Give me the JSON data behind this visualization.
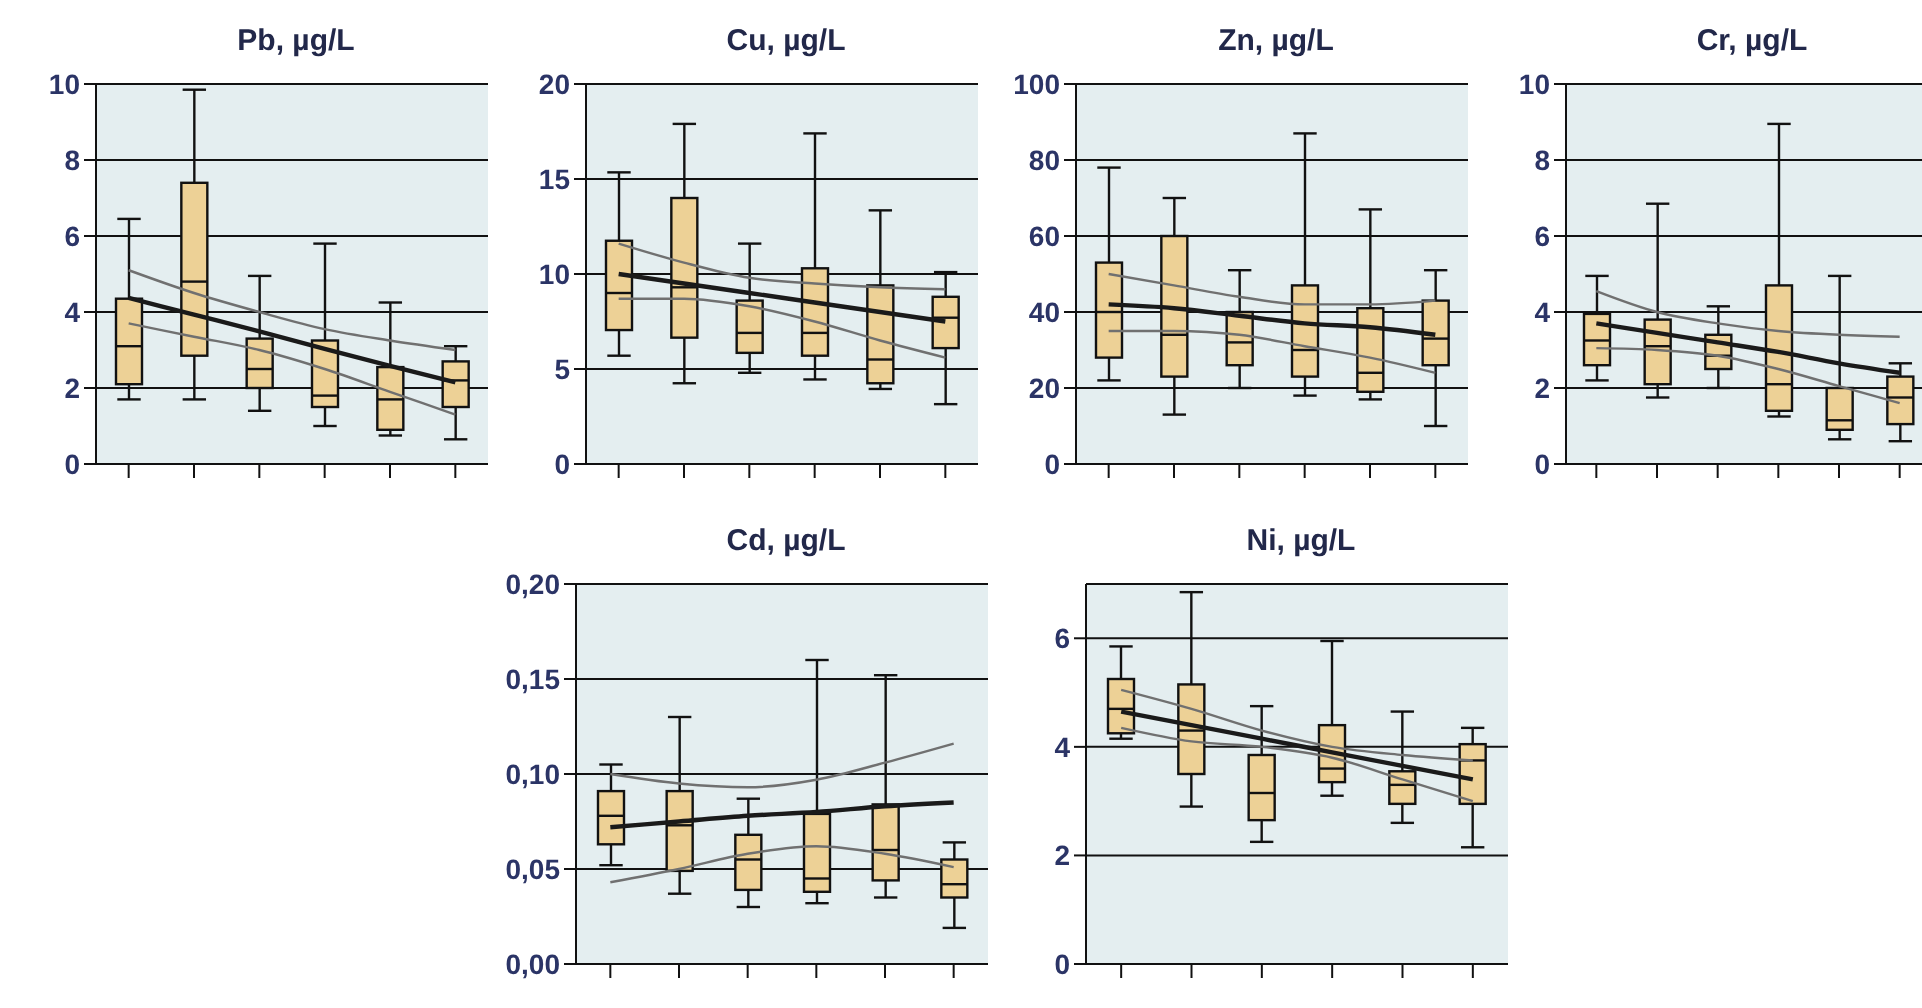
{
  "chart_data": [
    {
      "type": "box",
      "title": "Pb, µg/L",
      "categories": [
        null,
        null,
        null,
        null,
        null,
        null
      ],
      "ylim": [
        0,
        10
      ],
      "yticks": [
        0,
        2,
        4,
        6,
        8,
        10
      ],
      "grid": "y",
      "color": "#edd196",
      "boxes": [
        {
          "low": 1.7,
          "q1": 2.1,
          "median": 3.1,
          "q3": 4.35,
          "high": 6.45
        },
        {
          "low": 1.7,
          "q1": 2.85,
          "median": 4.8,
          "q3": 7.4,
          "high": 9.85
        },
        {
          "low": 1.4,
          "q1": 2.0,
          "median": 2.5,
          "q3": 3.3,
          "high": 4.95
        },
        {
          "low": 1.0,
          "q1": 1.5,
          "median": 1.8,
          "q3": 3.25,
          "high": 5.8
        },
        {
          "low": 0.75,
          "q1": 0.9,
          "median": 1.7,
          "q3": 2.55,
          "high": 4.25
        },
        {
          "low": 0.65,
          "q1": 1.5,
          "median": 2.2,
          "q3": 2.7,
          "high": 3.1
        }
      ],
      "series": [
        {
          "type": "line",
          "color": "#1a1a1a",
          "values": [
            4.37,
            3.93,
            3.49,
            3.03,
            2.58,
            2.15
          ]
        },
        {
          "type": "line",
          "color": "#707070",
          "values": [
            5.1,
            4.5,
            4.0,
            3.55,
            3.25,
            3.0
          ]
        },
        {
          "type": "line",
          "color": "#707070",
          "values": [
            3.7,
            3.35,
            3.0,
            2.5,
            1.9,
            1.3
          ]
        }
      ]
    },
    {
      "type": "box",
      "title": "Cu, µg/L",
      "categories": [
        null,
        null,
        null,
        null,
        null,
        null
      ],
      "ylim": [
        0,
        20
      ],
      "yticks": [
        0,
        5,
        10,
        15,
        20
      ],
      "grid": "y",
      "color": "#edd196",
      "boxes": [
        {
          "low": 5.7,
          "q1": 7.05,
          "median": 9.0,
          "q3": 11.75,
          "high": 15.35
        },
        {
          "low": 4.25,
          "q1": 6.65,
          "median": 9.3,
          "q3": 14.0,
          "high": 17.9
        },
        {
          "low": 4.8,
          "q1": 5.85,
          "median": 6.9,
          "q3": 8.6,
          "high": 11.6
        },
        {
          "low": 4.45,
          "q1": 5.7,
          "median": 6.9,
          "q3": 10.3,
          "high": 17.4
        },
        {
          "low": 3.95,
          "q1": 4.25,
          "median": 5.5,
          "q3": 9.4,
          "high": 13.35
        },
        {
          "low": 3.15,
          "q1": 6.1,
          "median": 7.7,
          "q3": 8.8,
          "high": 10.1
        }
      ],
      "series": [
        {
          "type": "line",
          "color": "#1a1a1a",
          "values": [
            10.0,
            9.5,
            9.0,
            8.5,
            8.0,
            7.5
          ]
        },
        {
          "type": "line",
          "color": "#707070",
          "values": [
            11.6,
            10.6,
            9.8,
            9.5,
            9.3,
            9.2
          ]
        },
        {
          "type": "line",
          "color": "#707070",
          "values": [
            8.7,
            8.7,
            8.3,
            7.5,
            6.5,
            5.6
          ]
        }
      ]
    },
    {
      "type": "box",
      "title": "Zn, µg/L",
      "categories": [
        null,
        null,
        null,
        null,
        null,
        null
      ],
      "ylim": [
        0,
        100
      ],
      "yticks": [
        0,
        20,
        40,
        60,
        80,
        100
      ],
      "grid": "y",
      "color": "#edd196",
      "boxes": [
        {
          "low": 22,
          "q1": 28,
          "median": 40,
          "q3": 53,
          "high": 78
        },
        {
          "low": 13,
          "q1": 23,
          "median": 34,
          "q3": 60,
          "high": 70
        },
        {
          "low": 20,
          "q1": 26,
          "median": 32,
          "q3": 40,
          "high": 51
        },
        {
          "low": 18,
          "q1": 23,
          "median": 30,
          "q3": 47,
          "high": 87
        },
        {
          "low": 17,
          "q1": 19,
          "median": 24,
          "q3": 41,
          "high": 67
        },
        {
          "low": 10,
          "q1": 26,
          "median": 33,
          "q3": 43,
          "high": 51
        }
      ],
      "series": [
        {
          "type": "line",
          "color": "#1a1a1a",
          "values": [
            42,
            41,
            39,
            37,
            36,
            34
          ]
        },
        {
          "type": "line",
          "color": "#707070",
          "values": [
            50,
            47,
            44,
            42,
            42,
            43
          ]
        },
        {
          "type": "line",
          "color": "#707070",
          "values": [
            35,
            35,
            34,
            31,
            28,
            24
          ]
        }
      ]
    },
    {
      "type": "box",
      "title": "Cr, µg/L",
      "categories": [
        null,
        null,
        null,
        null,
        null,
        null
      ],
      "ylim": [
        0,
        10
      ],
      "yticks": [
        0,
        2,
        4,
        6,
        8,
        10
      ],
      "grid": "y",
      "color": "#edd196",
      "boxes": [
        {
          "low": 2.2,
          "q1": 2.6,
          "median": 3.25,
          "q3": 3.95,
          "high": 4.95
        },
        {
          "low": 1.75,
          "q1": 2.1,
          "median": 3.1,
          "q3": 3.8,
          "high": 6.85
        },
        {
          "low": 2.0,
          "q1": 2.5,
          "median": 2.85,
          "q3": 3.4,
          "high": 4.15
        },
        {
          "low": 1.25,
          "q1": 1.4,
          "median": 2.1,
          "q3": 4.7,
          "high": 8.95
        },
        {
          "low": 0.65,
          "q1": 0.9,
          "median": 1.15,
          "q3": 2.0,
          "high": 4.95
        },
        {
          "low": 0.6,
          "q1": 1.05,
          "median": 1.75,
          "q3": 2.3,
          "high": 2.65
        }
      ],
      "series": [
        {
          "type": "line",
          "color": "#1a1a1a",
          "values": [
            3.7,
            3.45,
            3.2,
            2.95,
            2.65,
            2.4
          ]
        },
        {
          "type": "line",
          "color": "#707070",
          "values": [
            4.55,
            4.0,
            3.7,
            3.5,
            3.4,
            3.35
          ]
        },
        {
          "type": "line",
          "color": "#707070",
          "values": [
            3.05,
            3.0,
            2.85,
            2.5,
            2.05,
            1.6
          ]
        }
      ]
    },
    {
      "type": "box",
      "title": "Cd, µg/L",
      "categories": [
        null,
        null,
        null,
        null,
        null,
        null
      ],
      "ylim": [
        0,
        0.2
      ],
      "yticks": [
        {
          "value": 0,
          "label": "0,00"
        },
        {
          "value": 0.05,
          "label": "0,05"
        },
        {
          "value": 0.1,
          "label": "0,10"
        },
        {
          "value": 0.15,
          "label": "0,15"
        },
        {
          "value": 0.2,
          "label": "0,20"
        }
      ],
      "grid": "y",
      "color": "#edd196",
      "boxes": [
        {
          "low": 0.052,
          "q1": 0.063,
          "median": 0.078,
          "q3": 0.091,
          "high": 0.105
        },
        {
          "low": 0.037,
          "q1": 0.049,
          "median": 0.073,
          "q3": 0.091,
          "high": 0.13
        },
        {
          "low": 0.03,
          "q1": 0.039,
          "median": 0.055,
          "q3": 0.068,
          "high": 0.087
        },
        {
          "low": 0.032,
          "q1": 0.038,
          "median": 0.045,
          "q3": 0.079,
          "high": 0.16
        },
        {
          "low": 0.035,
          "q1": 0.044,
          "median": 0.06,
          "q3": 0.084,
          "high": 0.152
        },
        {
          "low": 0.019,
          "q1": 0.035,
          "median": 0.042,
          "q3": 0.055,
          "high": 0.064
        }
      ],
      "series": [
        {
          "type": "line",
          "color": "#1a1a1a",
          "values": [
            0.072,
            0.075,
            0.078,
            0.08,
            0.083,
            0.085
          ]
        },
        {
          "type": "line",
          "color": "#707070",
          "values": [
            0.1,
            0.095,
            0.093,
            0.097,
            0.106,
            0.116
          ]
        },
        {
          "type": "line",
          "color": "#707070",
          "values": [
            0.043,
            0.05,
            0.058,
            0.062,
            0.058,
            0.051
          ]
        }
      ]
    },
    {
      "type": "box",
      "title": "Ni, µg/L",
      "categories": [
        null,
        null,
        null,
        null,
        null,
        null
      ],
      "ylim": [
        0,
        7
      ],
      "yticks": [
        0,
        2,
        4,
        6
      ],
      "grid": "y",
      "color": "#edd196",
      "boxes": [
        {
          "low": 4.15,
          "q1": 4.25,
          "median": 4.7,
          "q3": 5.25,
          "high": 5.85
        },
        {
          "low": 2.9,
          "q1": 3.5,
          "median": 4.3,
          "q3": 5.15,
          "high": 6.85
        },
        {
          "low": 2.25,
          "q1": 2.65,
          "median": 3.15,
          "q3": 3.85,
          "high": 4.75
        },
        {
          "low": 3.1,
          "q1": 3.35,
          "median": 3.6,
          "q3": 4.4,
          "high": 5.95
        },
        {
          "low": 2.6,
          "q1": 2.95,
          "median": 3.3,
          "q3": 3.55,
          "high": 4.65
        },
        {
          "low": 2.15,
          "q1": 2.95,
          "median": 3.75,
          "q3": 4.05,
          "high": 4.35
        }
      ],
      "series": [
        {
          "type": "line",
          "color": "#1a1a1a",
          "values": [
            4.65,
            4.4,
            4.15,
            3.9,
            3.65,
            3.4
          ]
        },
        {
          "type": "line",
          "color": "#707070",
          "values": [
            5.05,
            4.7,
            4.3,
            4.0,
            3.85,
            3.75
          ]
        },
        {
          "type": "line",
          "color": "#707070",
          "values": [
            4.35,
            4.1,
            4.0,
            3.8,
            3.4,
            3.0
          ]
        }
      ]
    }
  ]
}
